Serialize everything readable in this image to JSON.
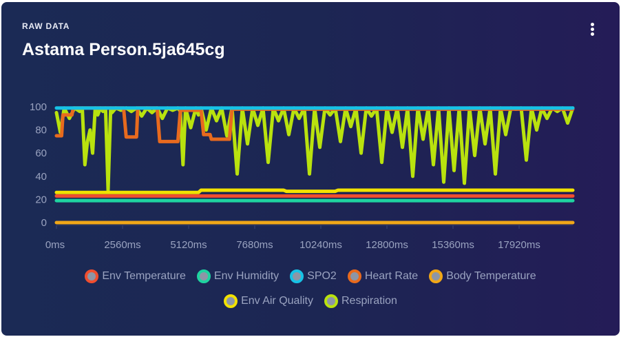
{
  "card": {
    "subtitle": "RAW DATA",
    "title": "Astama Person.5ja645cg"
  },
  "menu_icon": "more-vertical-icon",
  "chart_data": {
    "type": "line",
    "x_unit": "ms",
    "xlim": [
      0,
      20000
    ],
    "ylim": [
      0,
      100
    ],
    "y_ticks": [
      "100",
      "80",
      "60",
      "40",
      "20",
      "0"
    ],
    "x_ticks": [
      "0ms",
      "2560ms",
      "5120ms",
      "7680ms",
      "10240ms",
      "12800ms",
      "15360ms",
      "17920ms"
    ],
    "grid": false,
    "legend_position": "bottom",
    "series": [
      {
        "name": "Env Temperature",
        "color": "#f04e2f",
        "x": [
          0,
          20000
        ],
        "y": [
          23,
          23
        ]
      },
      {
        "name": "Env Humidity",
        "color": "#1fd3a0",
        "x": [
          0,
          20000
        ],
        "y": [
          19,
          19
        ]
      },
      {
        "name": "SPO2",
        "color": "#17c2e6",
        "x": [
          0,
          20000
        ],
        "y": [
          99,
          99
        ]
      },
      {
        "name": "Heart Rate",
        "color": "#e86a1e",
        "x": [
          0,
          200,
          250,
          600,
          650,
          2600,
          2700,
          3100,
          3150,
          3900,
          4000,
          4700,
          4800,
          5600,
          5700,
          5950,
          6000,
          6700,
          6800,
          20000
        ],
        "y": [
          75,
          75,
          93,
          93,
          99,
          99,
          74,
          74,
          99,
          99,
          70,
          70,
          97,
          97,
          76,
          76,
          72,
          72,
          98,
          98
        ]
      },
      {
        "name": "Body Temperature",
        "color": "#f0a718",
        "x": [
          0,
          20000
        ],
        "y": [
          0,
          0
        ]
      },
      {
        "name": "Env Air Quality",
        "color": "#f2e200",
        "x": [
          0,
          5500,
          5600,
          8800,
          8900,
          10800,
          10900,
          20000
        ],
        "y": [
          26,
          26,
          28,
          28,
          27,
          27,
          28,
          28
        ]
      },
      {
        "name": "Respiration",
        "color": "#b9e20e",
        "x": [
          0,
          150,
          300,
          500,
          700,
          900,
          1000,
          1100,
          1200,
          1300,
          1400,
          1500,
          1600,
          1700,
          1800,
          1900,
          2000,
          2100,
          2150,
          2300,
          2500,
          2700,
          2900,
          3100,
          3300,
          3500,
          3700,
          3900,
          4100,
          4300,
          4500,
          4700,
          4800,
          4900,
          5000,
          5200,
          5400,
          5500,
          5600,
          5800,
          6000,
          6200,
          6400,
          6600,
          6800,
          7000,
          7200,
          7400,
          7600,
          7800,
          8000,
          8200,
          8400,
          8600,
          8800,
          9000,
          9200,
          9400,
          9600,
          9800,
          10000,
          10200,
          10400,
          10600,
          10800,
          11000,
          11200,
          11400,
          11600,
          11800,
          12000,
          12200,
          12400,
          12600,
          12800,
          13000,
          13200,
          13400,
          13600,
          13800,
          14000,
          14200,
          14400,
          14600,
          14800,
          15000,
          15200,
          15400,
          15600,
          15800,
          16000,
          16200,
          16400,
          16600,
          16800,
          17000,
          17200,
          17400,
          17600,
          17800,
          18000,
          18200,
          18400,
          18600,
          18800,
          19000,
          19200,
          19400,
          19600,
          19800,
          20000
        ],
        "y": [
          95,
          78,
          99,
          90,
          99,
          96,
          99,
          50,
          70,
          80,
          60,
          99,
          93,
          99,
          96,
          99,
          28,
          99,
          95,
          99,
          97,
          99,
          96,
          99,
          92,
          99,
          95,
          99,
          90,
          99,
          97,
          99,
          96,
          50,
          99,
          82,
          99,
          93,
          99,
          80,
          99,
          88,
          99,
          75,
          99,
          42,
          99,
          68,
          99,
          84,
          99,
          52,
          99,
          88,
          99,
          76,
          99,
          90,
          99,
          42,
          99,
          65,
          99,
          93,
          99,
          70,
          99,
          83,
          99,
          60,
          99,
          92,
          99,
          52,
          99,
          78,
          99,
          65,
          99,
          40,
          99,
          72,
          99,
          50,
          99,
          35,
          99,
          45,
          99,
          34,
          99,
          58,
          99,
          68,
          99,
          42,
          99,
          76,
          99,
          98,
          99,
          54,
          99,
          80,
          99,
          90,
          99,
          96,
          99,
          86,
          99
        ]
      }
    ]
  }
}
